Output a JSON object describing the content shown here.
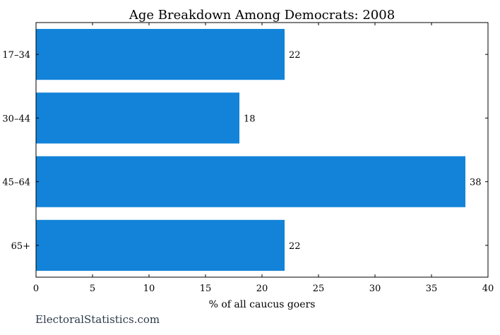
{
  "chart_data": {
    "type": "bar",
    "orientation": "horizontal",
    "title": "Age Breakdown Among Democrats: 2008",
    "xlabel": "% of all caucus goers",
    "ylabel": "",
    "categories": [
      "17–34",
      "30–44",
      "45–64",
      "65+"
    ],
    "values": [
      22,
      18,
      38,
      22
    ],
    "data_labels": [
      "22",
      "18",
      "38",
      "22"
    ],
    "xlim": [
      0,
      40
    ],
    "x_ticks": [
      "0",
      "5",
      "10",
      "15",
      "20",
      "25",
      "30",
      "35",
      "40"
    ],
    "grid": false,
    "bar_color": "#1283d8"
  },
  "footer": {
    "source": "ElectoralStatistics.com"
  }
}
